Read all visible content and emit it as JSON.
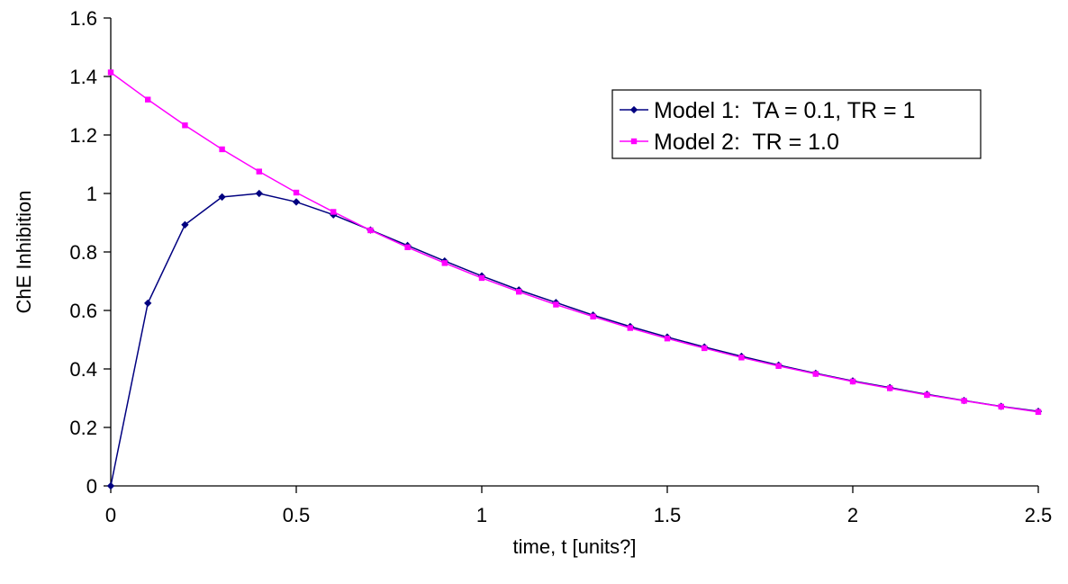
{
  "chart_data": {
    "type": "line",
    "title": "",
    "xlabel": "time, t [units?]",
    "ylabel": "ChE Inhibition",
    "xlim": [
      0,
      2.5
    ],
    "ylim": [
      0,
      1.6
    ],
    "x_ticks": [
      "0",
      "0.5",
      "1",
      "1.5",
      "2",
      "2.5"
    ],
    "y_ticks": [
      "0",
      "0.2",
      "0.4",
      "0.6",
      "0.8",
      "1",
      "1.2",
      "1.4",
      "1.6"
    ],
    "grid": false,
    "legend_position": "top-right",
    "x": [
      0,
      0.1,
      0.2,
      0.3,
      0.4,
      0.5,
      0.6,
      0.7,
      0.8,
      0.9,
      1.0,
      1.1,
      1.2,
      1.3,
      1.4,
      1.5,
      1.6,
      1.7,
      1.8,
      1.9,
      2.0,
      2.1,
      2.2,
      2.3,
      2.4,
      2.5
    ],
    "series": [
      {
        "name": "Model 1:  TA = 0.1, TR = 1",
        "color": "#000080",
        "marker": "diamond",
        "values": [
          0,
          0.625,
          0.893,
          0.988,
          1.0,
          0.971,
          0.927,
          0.875,
          0.822,
          0.769,
          0.718,
          0.67,
          0.627,
          0.584,
          0.545,
          0.509,
          0.475,
          0.443,
          0.413,
          0.385,
          0.359,
          0.336,
          0.313,
          0.292,
          0.272,
          0.255
        ]
      },
      {
        "name": "Model 2:  TR = 1.0",
        "color": "#ff00ff",
        "marker": "square",
        "values": [
          1.414,
          1.321,
          1.233,
          1.151,
          1.075,
          1.003,
          0.937,
          0.874,
          0.816,
          0.762,
          0.711,
          0.664,
          0.62,
          0.579,
          0.54,
          0.504,
          0.471,
          0.439,
          0.41,
          0.383,
          0.357,
          0.334,
          0.311,
          0.291,
          0.271,
          0.253
        ]
      }
    ]
  }
}
